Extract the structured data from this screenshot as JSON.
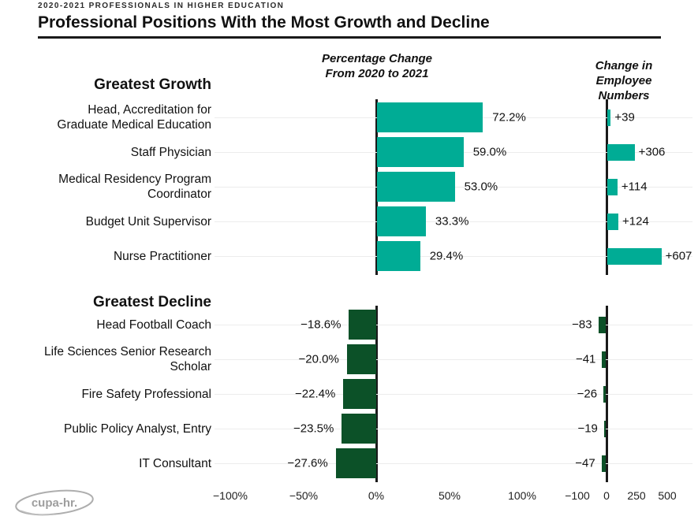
{
  "header": {
    "eyebrow": "2020-2021 PROFESSIONALS IN HIGHER EDUCATION",
    "title": "Professional Positions With the Most Growth and Decline"
  },
  "columns": {
    "pct": "Percentage Change\nFrom 2020 to 2021",
    "emp": "Change in\nEmployee Numbers"
  },
  "colors": {
    "growth_bar": "#00AC95",
    "decline_bar": "#0C5128",
    "axis": "#1a1a1a",
    "gridline": "#ececec"
  },
  "chart_data": [
    {
      "type": "bar",
      "orientation": "horizontal",
      "section": "Greatest Growth",
      "bar_color": "#00AC95",
      "categories": [
        "Head, Accreditation for\nGraduate Medical Education",
        "Staff Physician",
        "Medical Residency Program\nCoordinator",
        "Budget Unit Supervisor",
        "Nurse Practitioner"
      ],
      "series": [
        {
          "name": "Percentage Change From 2020 to 2021",
          "unit": "%",
          "values": [
            72.2,
            59.0,
            53.0,
            33.3,
            29.4
          ],
          "labels": [
            "72.2%",
            "59.0%",
            "53.0%",
            "33.3%",
            "29.4%"
          ]
        },
        {
          "name": "Change in Employee Numbers",
          "unit": "employees",
          "values": [
            39,
            306,
            114,
            124,
            607
          ],
          "labels": [
            "+39",
            "+306",
            "+114",
            "+124",
            "+607"
          ]
        }
      ]
    },
    {
      "type": "bar",
      "orientation": "horizontal",
      "section": "Greatest Decline",
      "bar_color": "#0C5128",
      "categories": [
        "Head Football Coach",
        "Life Sciences Senior Research\nScholar",
        "Fire Safety Professional",
        "Public Policy Analyst, Entry",
        "IT Consultant"
      ],
      "series": [
        {
          "name": "Percentage Change From 2020 to 2021",
          "unit": "%",
          "values": [
            -18.6,
            -20.0,
            -22.4,
            -23.5,
            -27.6
          ],
          "labels": [
            "−18.6%",
            "−20.0%",
            "−22.4%",
            "−23.5%",
            "−27.6%"
          ]
        },
        {
          "name": "Change in Employee Numbers",
          "unit": "employees",
          "values": [
            -83,
            -41,
            -26,
            -19,
            -47
          ],
          "labels": [
            "−83",
            "−41",
            "−26",
            "−19",
            "−47"
          ]
        }
      ]
    }
  ],
  "axes": {
    "pct_axis": {
      "ticks": [
        "−100%",
        "−50%",
        "0%",
        "50%",
        "100%"
      ],
      "range": [
        -100,
        100
      ],
      "grid": true
    },
    "emp_axis": {
      "ticks": [
        "−100",
        "0",
        "250",
        "500"
      ],
      "range": [
        -100,
        620
      ],
      "grid": true
    }
  },
  "footer": {
    "logo_text": "cupa-hr."
  }
}
